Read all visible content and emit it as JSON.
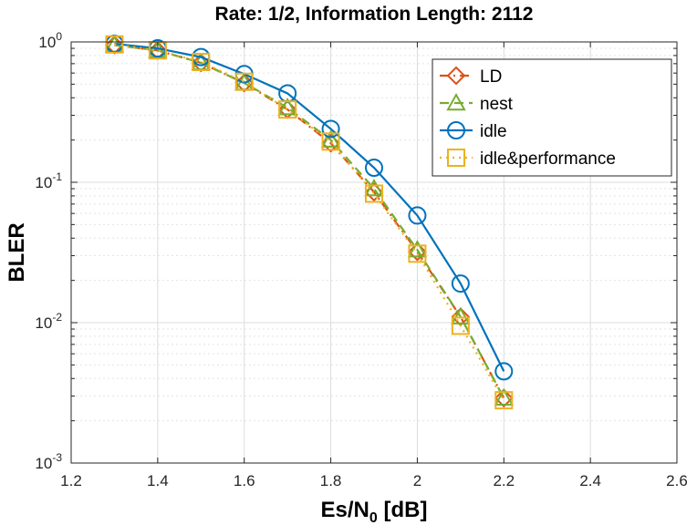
{
  "chart_data": {
    "type": "line",
    "title": "Rate: 1/2, Information Length: 2112",
    "xlabel": "Es/N",
    "xlabel_sub": "0",
    "xlabel_suffix": " [dB]",
    "ylabel": "BLER",
    "xlim": [
      1.2,
      2.6
    ],
    "ylim": [
      0.001,
      1
    ],
    "y_scale": "log",
    "x_ticks": [
      "1.2",
      "1.4",
      "1.6",
      "1.8",
      "2",
      "2.2",
      "2.4",
      "2.6"
    ],
    "x_tick_values": [
      1.2,
      1.4,
      1.6,
      1.8,
      2.0,
      2.2,
      2.4,
      2.6
    ],
    "y_ticks": [
      {
        "base": "10",
        "exp": "0",
        "value": 1
      },
      {
        "base": "10",
        "exp": "-1",
        "value": 0.1
      },
      {
        "base": "10",
        "exp": "-2",
        "value": 0.01
      },
      {
        "base": "10",
        "exp": "-3",
        "value": 0.001
      }
    ],
    "grid": true,
    "legend_position": "top-right",
    "x": [
      1.3,
      1.4,
      1.5,
      1.6,
      1.7,
      1.8,
      1.9,
      2.0,
      2.1,
      2.2
    ],
    "series": [
      {
        "name": "LD",
        "color": "#D95319",
        "marker": "diamond",
        "line": "dashdot",
        "values": [
          0.95,
          0.87,
          0.71,
          0.51,
          0.33,
          0.19,
          0.085,
          0.032,
          0.011,
          0.0029
        ]
      },
      {
        "name": "nest",
        "color": "#77AC30",
        "marker": "triangle",
        "line": "dashed",
        "values": [
          0.95,
          0.87,
          0.71,
          0.51,
          0.34,
          0.2,
          0.09,
          0.033,
          0.011,
          0.0029
        ]
      },
      {
        "name": "idle",
        "color": "#0072BD",
        "marker": "circle",
        "line": "solid",
        "values": [
          0.97,
          0.9,
          0.78,
          0.59,
          0.43,
          0.24,
          0.127,
          0.058,
          0.019,
          0.0045
        ]
      },
      {
        "name": "idle&performance",
        "color": "#EDB120",
        "marker": "square",
        "line": "dotted",
        "values": [
          0.96,
          0.87,
          0.72,
          0.52,
          0.33,
          0.195,
          0.083,
          0.031,
          0.0095,
          0.0028
        ]
      }
    ]
  }
}
